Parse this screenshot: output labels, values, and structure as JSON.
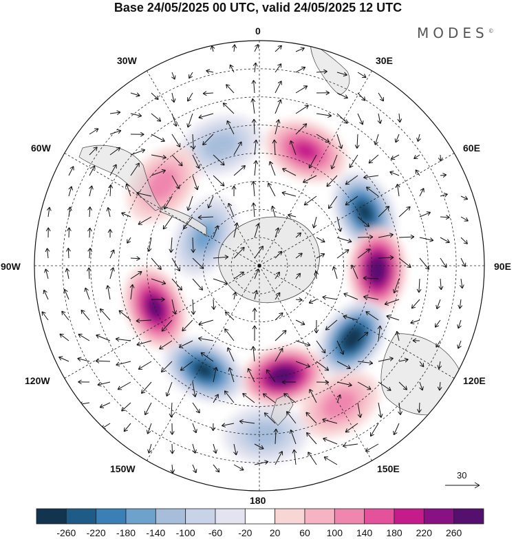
{
  "title": "Base 24/05/2025 00 UTC, valid 24/05/2025 12 UTC",
  "logo": "MODES",
  "logo_mark": "©",
  "longitude_labels": {
    "lon_0": "0",
    "lon_30E": "30E",
    "lon_60E": "60E",
    "lon_90E": "90E",
    "lon_120E": "120E",
    "lon_150E": "150E",
    "lon_180": "180",
    "lon_150W": "150W",
    "lon_120W": "120W",
    "lon_90W": "90W",
    "lon_60W": "60W",
    "lon_30W": "30W"
  },
  "vector_reference": "30",
  "colorbar": {
    "colors": [
      "#12344f",
      "#1f5b87",
      "#3a7fb5",
      "#6ea2cd",
      "#a7bedb",
      "#c9d3e7",
      "#e4e4f0",
      "#ffffff",
      "#f8d6d6",
      "#f5b3c3",
      "#ef86ae",
      "#e3529b",
      "#c41c8a",
      "#8a1184",
      "#55106f"
    ],
    "ticks": [
      "-260",
      "-220",
      "-180",
      "-140",
      "-100",
      "-60",
      "-20",
      "20",
      "60",
      "100",
      "140",
      "180",
      "220",
      "260"
    ]
  },
  "anomaly_features": [
    {
      "sign": "neg",
      "lon": 63,
      "lat": -48,
      "level": 6
    },
    {
      "sign": "pos",
      "lon": 92,
      "lat": -48,
      "level": 7
    },
    {
      "sign": "neg",
      "lon": 128,
      "lat": -48,
      "level": 7
    },
    {
      "sign": "pos",
      "lon": 168,
      "lat": -50,
      "level": 7
    },
    {
      "sign": "neg",
      "lon": -152,
      "lat": -48,
      "level": 6
    },
    {
      "sign": "pos",
      "lon": -112,
      "lat": -50,
      "level": 6
    },
    {
      "sign": "pos",
      "lon": 22,
      "lat": -46,
      "level": 4
    },
    {
      "sign": "neg",
      "lon": -62,
      "lat": -68,
      "level": 3
    },
    {
      "sign": "neg",
      "lon": -18,
      "lat": -45,
      "level": 2
    },
    {
      "sign": "pos",
      "lon": -50,
      "lat": -45,
      "level": 2
    },
    {
      "sign": "pos",
      "lon": 150,
      "lat": -33,
      "level": 2
    },
    {
      "sign": "neg",
      "lon": 178,
      "lat": -30,
      "level": 2
    }
  ]
}
